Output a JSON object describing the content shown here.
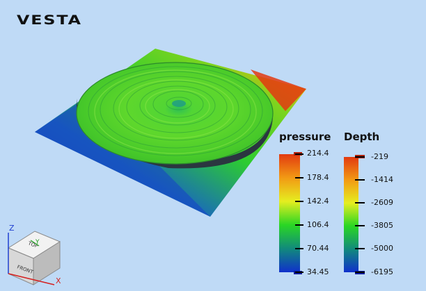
{
  "app": {
    "logo_text": "VESTA"
  },
  "viewport": {
    "background_color": "#bfdaf6",
    "content": "3d-surface-with-disk"
  },
  "legends": {
    "pressure": {
      "title": "pressure",
      "ticks": [
        "214.4",
        "178.4",
        "142.4",
        "106.4",
        "70.44",
        "34.45"
      ],
      "colormap": [
        "#d23a12",
        "#f0a014",
        "#ddee20",
        "#2ad620",
        "#0f8a7a",
        "#1033c8"
      ]
    },
    "depth": {
      "title": "Depth",
      "ticks": [
        "-219",
        "-1414",
        "-2609",
        "-3805",
        "-5000",
        "-6195"
      ],
      "colormap": [
        "#d23a12",
        "#f0a014",
        "#ddee20",
        "#2ad620",
        "#0f8a7a",
        "#1033c8"
      ]
    }
  },
  "orientation_cube": {
    "axis_labels": {
      "x": "X",
      "y": "Y",
      "z": "Z"
    },
    "axis_colors": {
      "x": "#d42020",
      "y": "#20a020",
      "z": "#2040d0"
    }
  }
}
